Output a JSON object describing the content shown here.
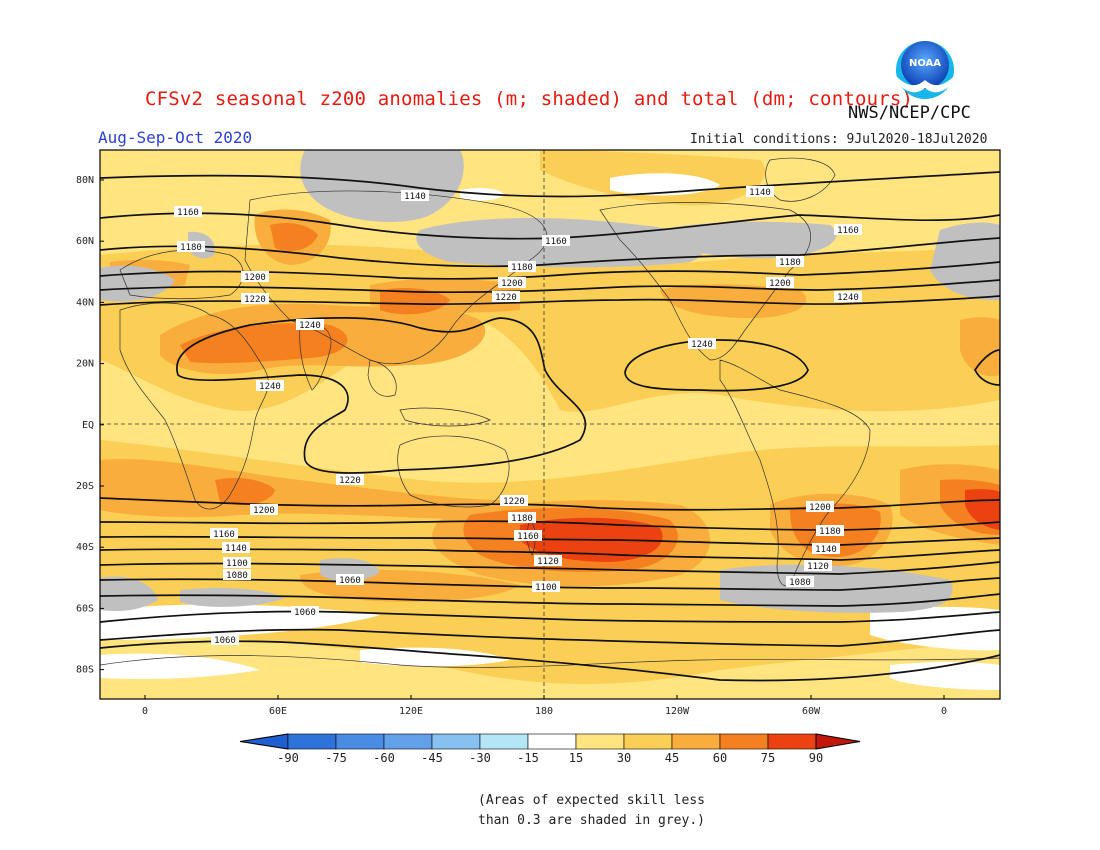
{
  "header": {
    "title": "CFSv2 seasonal z200 anomalies (m; shaded) and total (dm; contours)",
    "agency": "NWS/NCEP/CPC",
    "season": "Aug-Sep-Oct 2020",
    "initial_conditions": "Initial conditions: 9Jul2020-18Jul2020",
    "logo_text": "NOAA"
  },
  "map": {
    "y_labels": [
      "80N",
      "60N",
      "40N",
      "20N",
      "EQ",
      "20S",
      "40S",
      "60S",
      "80S"
    ],
    "x_labels": [
      "0",
      "60E",
      "120E",
      "180",
      "120W",
      "60W",
      "0"
    ],
    "contour_labels": [
      "1140",
      "1140",
      "1160",
      "1160",
      "1160",
      "1180",
      "1180",
      "1180",
      "1200",
      "1200",
      "1200",
      "1220",
      "1220",
      "1240",
      "1240",
      "1240",
      "1240",
      "1220",
      "1220",
      "1200",
      "1200",
      "1180",
      "1180",
      "1160",
      "1160",
      "1140",
      "1140",
      "1120",
      "1120",
      "1100",
      "1100",
      "1080",
      "1080",
      "1060",
      "1060",
      "1060"
    ],
    "colors": {
      "c15": "#ffe480",
      "c30": "#fbcf55",
      "c45": "#f9ad3c",
      "c60": "#f5801f",
      "c75": "#ec4110",
      "c90": "#c3170b",
      "grey": "#c0c0c0"
    }
  },
  "colorbar": {
    "labels": [
      "-90",
      "-75",
      "-60",
      "-45",
      "-30",
      "-15",
      "15",
      "30",
      "45",
      "60",
      "75",
      "90"
    ],
    "colors": [
      "#2e73d9",
      "#4a8be3",
      "#62a0ea",
      "#86c1f2",
      "#b4e6f8",
      "#ffffff",
      "#ffe480",
      "#fbcf55",
      "#f9ad3c",
      "#f5801f",
      "#ec4110"
    ],
    "left_color": "#1f5ed0",
    "right_color": "#c3170b"
  },
  "footnote": {
    "line1": "(Areas of expected skill less",
    "line2": "than 0.3 are shaded in grey.)"
  }
}
